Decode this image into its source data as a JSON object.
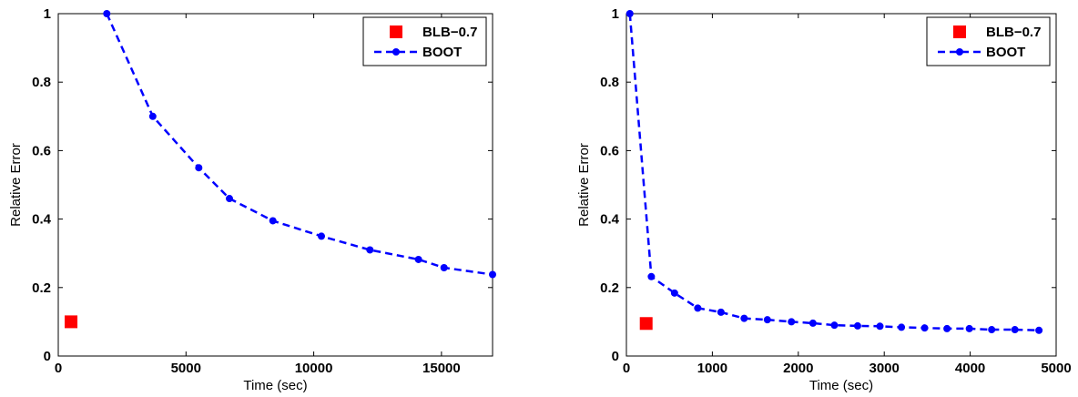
{
  "chart_data": [
    {
      "type": "line",
      "xlabel": "Time (sec)",
      "ylabel": "Relative Error",
      "xlim": [
        0,
        17000
      ],
      "ylim": [
        0,
        1
      ],
      "x_ticks": [
        0,
        5000,
        10000,
        15000
      ],
      "y_ticks": [
        0,
        0.2,
        0.4,
        0.6,
        0.8,
        1
      ],
      "grid": false,
      "legend_position": "top-right",
      "series": [
        {
          "name": "BLB−0.7",
          "marker": "square",
          "color": "#ff0000",
          "x": [
            500
          ],
          "y": [
            0.1
          ]
        },
        {
          "name": "BOOT",
          "marker": "circle",
          "line_style": "dashed",
          "color": "#0000ff",
          "x": [
            1900,
            3700,
            5500,
            6700,
            8400,
            10300,
            12200,
            14100,
            15100,
            17000
          ],
          "y": [
            1.0,
            0.7,
            0.55,
            0.46,
            0.395,
            0.35,
            0.31,
            0.282,
            0.258,
            0.238
          ]
        }
      ]
    },
    {
      "type": "line",
      "xlabel": "Time (sec)",
      "ylabel": "Relative Error",
      "xlim": [
        0,
        5000
      ],
      "ylim": [
        0,
        1
      ],
      "x_ticks": [
        0,
        1000,
        2000,
        3000,
        4000,
        5000
      ],
      "y_ticks": [
        0,
        0.2,
        0.4,
        0.6,
        0.8,
        1
      ],
      "grid": false,
      "legend_position": "top-right",
      "series": [
        {
          "name": "BLB−0.7",
          "marker": "square",
          "color": "#ff0000",
          "x": [
            230
          ],
          "y": [
            0.095
          ]
        },
        {
          "name": "BOOT",
          "marker": "circle",
          "line_style": "dashed",
          "color": "#0000ff",
          "x": [
            40,
            290,
            560,
            830,
            1100,
            1370,
            1640,
            1920,
            2170,
            2420,
            2690,
            2950,
            3200,
            3470,
            3730,
            3990,
            4250,
            4520,
            4800
          ],
          "y": [
            1.0,
            0.232,
            0.184,
            0.14,
            0.128,
            0.11,
            0.106,
            0.1,
            0.096,
            0.09,
            0.088,
            0.087,
            0.084,
            0.082,
            0.08,
            0.08,
            0.077,
            0.077,
            0.075
          ]
        }
      ]
    }
  ]
}
